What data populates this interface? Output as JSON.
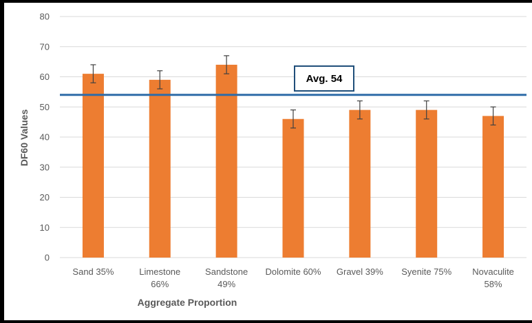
{
  "chart_data": {
    "type": "bar",
    "title": "",
    "xlabel": "Aggregate Proportion",
    "ylabel": "DF60 Values",
    "ylim": [
      0,
      80
    ],
    "yticks": [
      0,
      10,
      20,
      30,
      40,
      50,
      60,
      70,
      80
    ],
    "grid": true,
    "legend": "none",
    "categories": [
      [
        "Sand 35%"
      ],
      [
        "Limestone",
        "66%"
      ],
      [
        "Sandstone",
        "49%"
      ],
      [
        "Dolomite 60%"
      ],
      [
        "Gravel 39%"
      ],
      [
        "Syenite 75%"
      ],
      [
        "Novaculite",
        "58%"
      ]
    ],
    "values": [
      61,
      59,
      64,
      46,
      49,
      49,
      47
    ],
    "error": [
      3,
      3,
      3,
      3,
      3,
      3,
      3
    ],
    "reference_line": {
      "value": 54,
      "label": "Avg. 54"
    },
    "colors": {
      "bar": "#ed7d31",
      "reference_line": "#2e6ca8",
      "annotation_border": "#1f4e79",
      "grid": "#d9d9d9",
      "error_bar": "#404040"
    }
  }
}
